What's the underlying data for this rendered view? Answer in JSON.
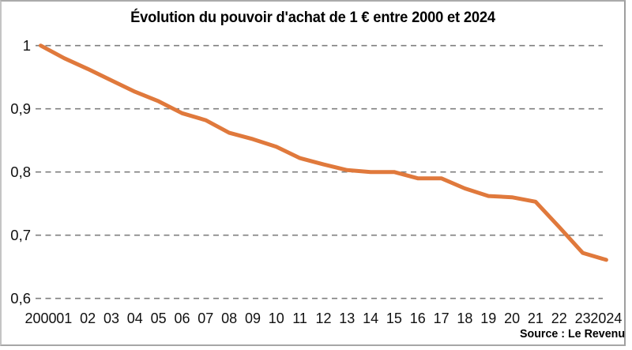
{
  "chart_data": {
    "type": "line",
    "title": "Évolution du pouvoir d'achat de 1 € entre 2000 et 2024",
    "source": "Source : Le Revenu",
    "x": [
      2000,
      2001,
      2002,
      2003,
      2004,
      2005,
      2006,
      2007,
      2008,
      2009,
      2010,
      2011,
      2012,
      2013,
      2014,
      2015,
      2016,
      2017,
      2018,
      2019,
      2020,
      2021,
      2022,
      2023,
      2024
    ],
    "x_tick_labels": [
      "2000",
      "01",
      "02",
      "03",
      "04",
      "05",
      "06",
      "07",
      "08",
      "09",
      "10",
      "11",
      "12",
      "13",
      "14",
      "15",
      "16",
      "17",
      "18",
      "19",
      "20",
      "21",
      "22",
      "23",
      "2024"
    ],
    "y_ticks": [
      1,
      0.9,
      0.8,
      0.7,
      0.6
    ],
    "y_tick_labels": [
      "1",
      "0,9",
      "0,8",
      "0,7",
      "0,6"
    ],
    "ylim": [
      0.6,
      1.0
    ],
    "grid": "horizontal-dashed",
    "legend": "none",
    "line_color": "#e0793c",
    "grid_color": "#7f7f7f",
    "series": [
      {
        "name": "Pouvoir d'achat de 1 €",
        "values": [
          1.0,
          0.98,
          0.963,
          0.945,
          0.927,
          0.912,
          0.893,
          0.882,
          0.862,
          0.852,
          0.84,
          0.822,
          0.812,
          0.803,
          0.8,
          0.8,
          0.79,
          0.79,
          0.774,
          0.762,
          0.76,
          0.753,
          0.713,
          0.672,
          0.661
        ]
      }
    ]
  }
}
